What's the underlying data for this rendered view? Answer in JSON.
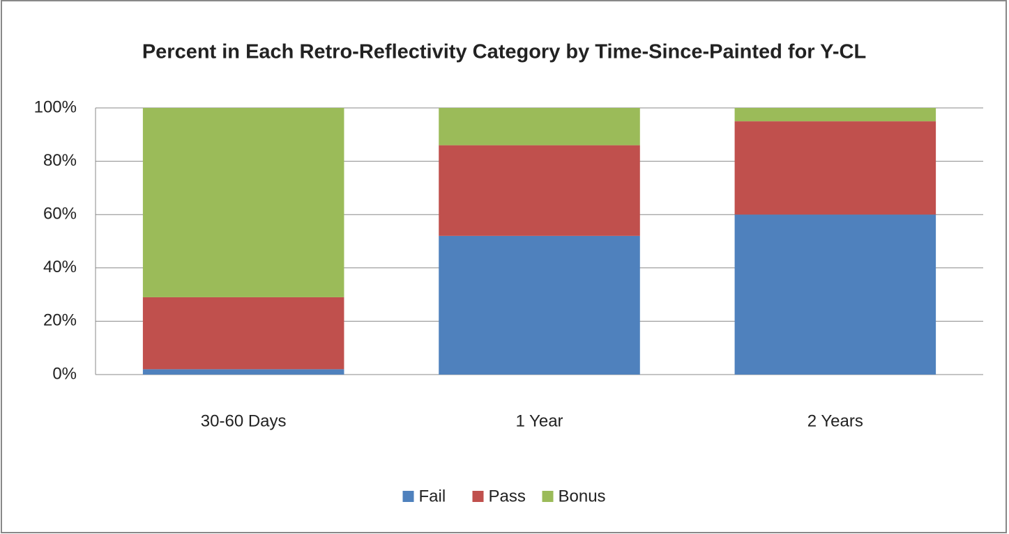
{
  "chart_data": {
    "type": "stacked_bar",
    "title": "Percent in Each Retro-Reflectivity Category by Time-Since-Painted for Y-CL",
    "categories": [
      "30-60 Days",
      "1 Year",
      "2 Years"
    ],
    "series": [
      {
        "name": "Fail",
        "color": "#4f81bd",
        "values": [
          2,
          52,
          60
        ]
      },
      {
        "name": "Pass",
        "color": "#c0504d",
        "values": [
          27,
          34,
          35
        ]
      },
      {
        "name": "Bonus",
        "color": "#9bbb59",
        "values": [
          71,
          14,
          5
        ]
      }
    ],
    "ylim": [
      0,
      100
    ],
    "yticks": [
      {
        "value": 0,
        "label": "0%"
      },
      {
        "value": 20,
        "label": "20%"
      },
      {
        "value": 40,
        "label": "40%"
      },
      {
        "value": 60,
        "label": "60%"
      },
      {
        "value": 80,
        "label": "80%"
      },
      {
        "value": 100,
        "label": "100%"
      }
    ],
    "grid": true,
    "legend": "bottom"
  }
}
